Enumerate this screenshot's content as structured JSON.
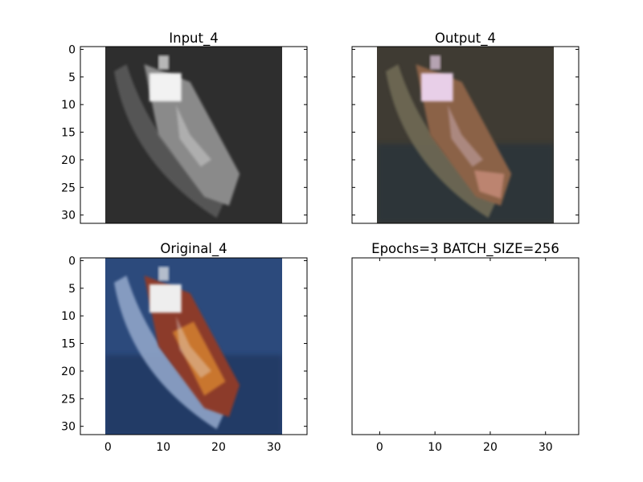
{
  "chart_data": [
    {
      "type": "image",
      "title": "Input_4",
      "description_colormap": "grayscale",
      "xlim": [
        -5,
        36
      ],
      "ylim": [
        31.5,
        -0.5
      ],
      "image_extent": [
        -0.5,
        31.5
      ],
      "xticks": [],
      "yticks": [
        0,
        5,
        10,
        15,
        20,
        25,
        30
      ],
      "xtick_labels": [],
      "ytick_labels": [
        "0",
        "5",
        "10",
        "15",
        "20",
        "25",
        "30"
      ],
      "image_content": "grayscale boat seen from above, bow pointing down-right",
      "palette": {
        "water": "#2e2e2e",
        "hull": "#8a8a8a",
        "cabin": "#f2f2f2",
        "wake": "#5a5a5a"
      }
    },
    {
      "type": "image",
      "title": "Output_4",
      "xlim": [
        -5,
        36
      ],
      "ylim": [
        31.5,
        -0.5
      ],
      "image_extent": [
        -0.5,
        31.5
      ],
      "xticks": [],
      "yticks": [
        0,
        5,
        10,
        15,
        20,
        25,
        30
      ],
      "xtick_labels": [],
      "ytick_labels": [],
      "image_content": "colorized reconstruction of the boat",
      "palette": {
        "water": "#3f3b33",
        "water_dark": "#23303e",
        "hull": "#8b6247",
        "cabin": "#e8cfe8",
        "wake": "#6f6a55",
        "accent": "#c58a78"
      }
    },
    {
      "type": "image",
      "title": "Original_4",
      "xlim": [
        -5,
        36
      ],
      "ylim": [
        31.5,
        -0.5
      ],
      "image_extent": [
        -0.5,
        31.5
      ],
      "xticks": [
        0,
        10,
        20,
        30
      ],
      "yticks": [
        0,
        5,
        10,
        15,
        20,
        25,
        30
      ],
      "xtick_labels": [
        "0",
        "10",
        "20",
        "30"
      ],
      "ytick_labels": [
        "0",
        "5",
        "10",
        "15",
        "20",
        "25",
        "30"
      ],
      "image_content": "original color photo of a cargo boat on blue water",
      "palette": {
        "water": "#2c4a7c",
        "water_dark": "#1c3358",
        "hull": "#8c3a2a",
        "cargo": "#c9762f",
        "cabin": "#eeeeee",
        "wake": "#8fa4c8"
      }
    },
    {
      "type": "empty",
      "title": "Epochs=3 BATCH_SIZE=256",
      "xlim": [
        -5,
        36
      ],
      "xticks": [
        0,
        10,
        20,
        30
      ],
      "yticks": [],
      "xtick_labels": [
        "0",
        "10",
        "20",
        "30"
      ],
      "ytick_labels": []
    }
  ]
}
